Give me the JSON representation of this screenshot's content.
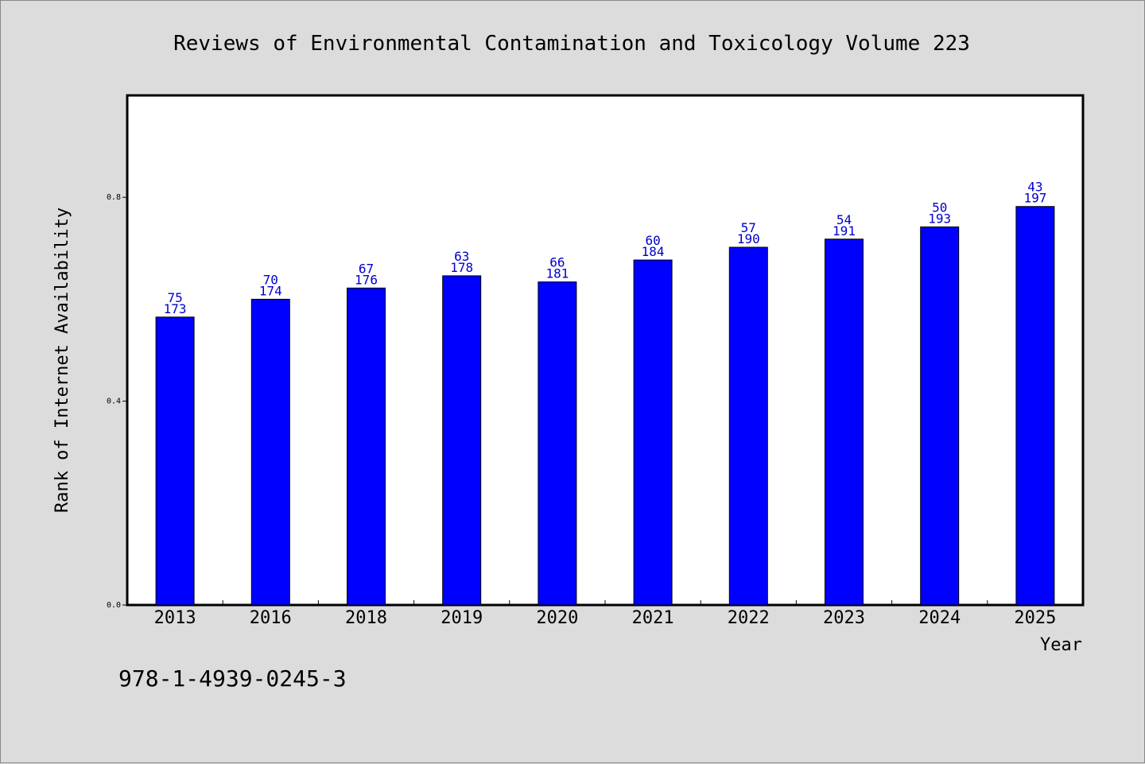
{
  "chart_data": {
    "type": "bar",
    "title": "Reviews of Environmental Contamination and Toxicology Volume 223",
    "xlabel": "Year",
    "ylabel": "Rank of Internet Availability",
    "ylim": [
      0,
      1.0
    ],
    "yticks": [
      0.0,
      0.4,
      0.8
    ],
    "ytick_labels": [
      "0.0",
      "0.4",
      "0.8"
    ],
    "categories": [
      "2013",
      "2016",
      "2018",
      "2019",
      "2020",
      "2021",
      "2022",
      "2023",
      "2024",
      "2025"
    ],
    "values": [
      0.565,
      0.6,
      0.622,
      0.646,
      0.634,
      0.677,
      0.702,
      0.718,
      0.742,
      0.782
    ],
    "labels_top": [
      "75",
      "70",
      "67",
      "63",
      "66",
      "60",
      "57",
      "54",
      "50",
      "43"
    ],
    "labels_bottom": [
      "173",
      "174",
      "176",
      "178",
      "181",
      "184",
      "190",
      "191",
      "193",
      "197"
    ],
    "bar_color": "#0000ff",
    "label_color": "#0000cc",
    "grid": false,
    "legend": "none"
  },
  "footer": {
    "isbn": "978-1-4939-0245-3"
  }
}
